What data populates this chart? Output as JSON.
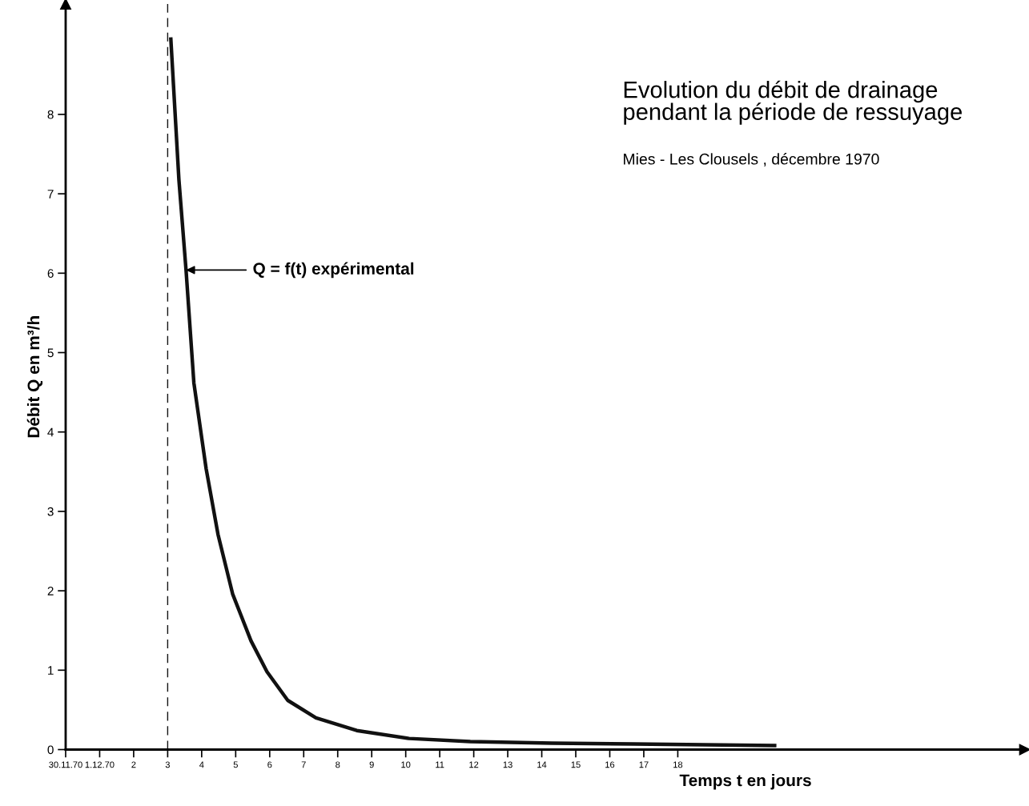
{
  "chart_data": {
    "type": "line",
    "title": "Evolution du débit de drainage\npendant la période de ressuyage",
    "subtitle": "Mies - Les Clousels , décembre 1970",
    "xlabel": "Temps t en jours",
    "ylabel": "Débit Q en m³/h",
    "x": [
      3.09,
      3.33,
      3.54,
      3.77,
      4.13,
      4.48,
      4.91,
      5.45,
      5.92,
      6.53,
      7.36,
      8.56,
      10.1,
      11.9,
      14.3,
      16.7,
      20.9
    ],
    "series": [
      {
        "color": "#111111",
        "values": [
          8.97,
          7.18,
          6.04,
          4.62,
          3.54,
          2.71,
          1.96,
          1.37,
          0.98,
          0.62,
          0.4,
          0.24,
          0.14,
          0.1,
          0.08,
          0.07,
          0.05
        ]
      }
    ],
    "xlim": [
      0,
      28.2
    ],
    "ylim": [
      0,
      9.39
    ],
    "xticks": [
      {
        "value": 0,
        "label": "30.11.70"
      },
      {
        "value": 1,
        "label": "1.12.70"
      },
      2,
      3,
      4,
      5,
      6,
      7,
      8,
      9,
      10,
      11,
      12,
      13,
      14,
      15,
      16,
      17,
      18
    ],
    "yticks": [
      0,
      1,
      2,
      3,
      4,
      5,
      6,
      7,
      8
    ],
    "ref_lines": [
      {
        "axis": "x",
        "value": 3,
        "label": null,
        "color": "#111111",
        "line_style": "dashed"
      }
    ],
    "annotations": [
      {
        "text": "Q = f(t) expérimental",
        "x": 3.54,
        "y": 6.04
      }
    ],
    "grid": false,
    "legend": false,
    "marker": "none",
    "line_style": "solid"
  }
}
